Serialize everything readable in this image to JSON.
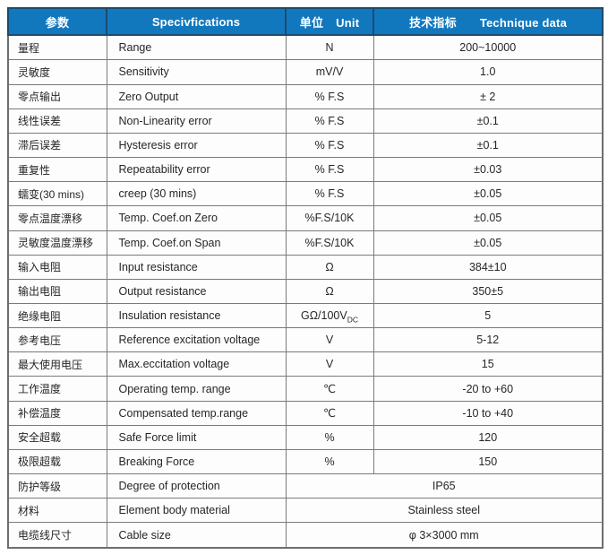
{
  "colors": {
    "header_bg": "#1278BE",
    "header_border": "#1C4A6E",
    "grid": "#7a7a7a",
    "text": "#262626"
  },
  "table": {
    "headers": {
      "param_cn": "参数",
      "spec": "Specivfications",
      "unit_cn": "单位",
      "unit_en": "Unit",
      "tech_cn": "技术指标",
      "tech_en": "Technique data"
    },
    "rows": [
      {
        "cn": "量程",
        "en": "Range",
        "unit": "N",
        "value": "200~10000"
      },
      {
        "cn": "灵敏度",
        "en": "Sensitivity",
        "unit": "mV/V",
        "value": "1.0"
      },
      {
        "cn": "零点输出",
        "en": "Zero Output",
        "unit": "% F.S",
        "value": "± 2"
      },
      {
        "cn": "线性误差",
        "en": "Non-Linearity error",
        "unit": "% F.S",
        "value": "±0.1"
      },
      {
        "cn": "滞后误差",
        "en": "Hysteresis error",
        "unit": "% F.S",
        "value": "±0.1"
      },
      {
        "cn": "重复性",
        "en": "Repeatability error",
        "unit": "% F.S",
        "value": "±0.03"
      },
      {
        "cn": "蠕变(30 mins)",
        "en": "creep (30 mins)",
        "unit": "% F.S",
        "value": "±0.05"
      },
      {
        "cn": "零点温度漂移",
        "en": "Temp. Coef.on Zero",
        "unit": "%F.S/10K",
        "value": "±0.05"
      },
      {
        "cn": "灵敏度温度漂移",
        "en": "Temp. Coef.on Span",
        "unit": "%F.S/10K",
        "value": "±0.05"
      },
      {
        "cn": "输入电阻",
        "en": "Input resistance",
        "unit": "Ω",
        "value": "384±10"
      },
      {
        "cn": "输出电阻",
        "en": "Output resistance",
        "unit": "Ω",
        "value": "350±5"
      },
      {
        "cn": "绝缘电阻",
        "en": "Insulation resistance",
        "unit": "GΩ/100V",
        "unit_sub": "DC",
        "value": "5"
      },
      {
        "cn": "参考电压",
        "en": "Reference excitation voltage",
        "unit": "V",
        "value": "5-12"
      },
      {
        "cn": "最大使用电压",
        "en": "Max.eccitation voltage",
        "unit": "V",
        "value": "15"
      },
      {
        "cn": "工作温度",
        "en": "Operating temp. range",
        "unit": "℃",
        "value": "-20 to +60"
      },
      {
        "cn": "补偿温度",
        "en": "Compensated temp.range",
        "unit": "℃",
        "value": "-10 to +40"
      },
      {
        "cn": "安全超载",
        "en": "Safe Force limit",
        "unit": "%",
        "value": "120"
      },
      {
        "cn": "极限超载",
        "en": "Breaking Force",
        "unit": "%",
        "value": "150"
      },
      {
        "cn": "防护等级",
        "en": "Degree of protection",
        "merged": true,
        "value": "IP65"
      },
      {
        "cn": "材料",
        "en": "Element body material",
        "merged": true,
        "value": "Stainless steel"
      },
      {
        "cn": "电缆线尺寸",
        "en": "Cable size",
        "merged": true,
        "value": "φ 3×3000 mm"
      }
    ]
  }
}
